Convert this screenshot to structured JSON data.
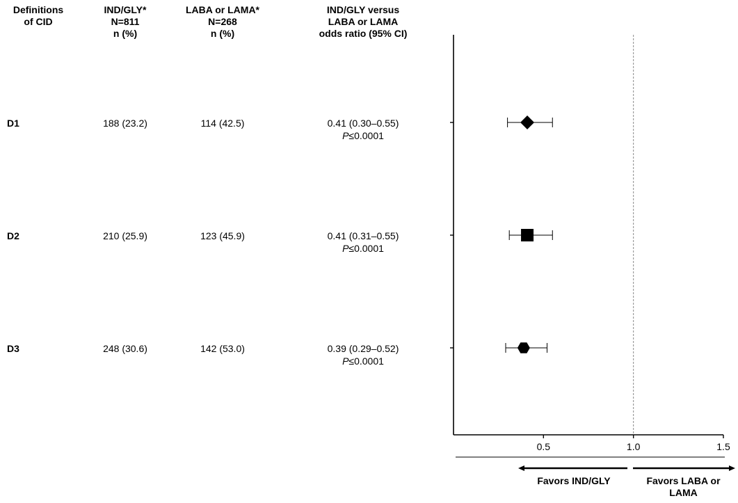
{
  "table": {
    "headers": {
      "definitions": [
        "Definitions",
        "of CID"
      ],
      "ind_gly": [
        "IND/GLY*",
        "N=811",
        "n (%)"
      ],
      "laba_lama": [
        "LABA or LAMA*",
        "N=268",
        "n (%)"
      ],
      "odds": [
        "IND/GLY versus",
        "LABA or LAMA",
        "odds ratio (95% CI)"
      ]
    },
    "rows": [
      {
        "label": "D1",
        "ind_gly": "188 (23.2)",
        "laba_lama": "114 (42.5)",
        "or_text": "0.41 (0.30–0.55)",
        "p_letter": "P",
        "p_value": "≤0.0001"
      },
      {
        "label": "D2",
        "ind_gly": "210 (25.9)",
        "laba_lama": "123 (45.9)",
        "or_text": "0.41 (0.31–0.55)",
        "p_letter": "P",
        "p_value": "≤0.0001"
      },
      {
        "label": "D3",
        "ind_gly": "248 (30.6)",
        "laba_lama": "142 (53.0)",
        "or_text": "0.39 (0.29–0.52)",
        "p_letter": "P",
        "p_value": "≤0.0001"
      }
    ]
  },
  "chart_data": {
    "type": "scatter",
    "title": "",
    "xlabel": "",
    "ylabel": "",
    "xlim": [
      0,
      1.5
    ],
    "x_ticks": [
      "0.5",
      "1.0",
      "1.5"
    ],
    "x_tick_values": [
      0.5,
      1.0,
      1.5
    ],
    "reference_line": 1.0,
    "points": [
      {
        "category": "D1",
        "estimate": 0.41,
        "ci_low": 0.3,
        "ci_high": 0.55,
        "marker": "diamond"
      },
      {
        "category": "D2",
        "estimate": 0.41,
        "ci_low": 0.31,
        "ci_high": 0.55,
        "marker": "square"
      },
      {
        "category": "D3",
        "estimate": 0.39,
        "ci_low": 0.29,
        "ci_high": 0.52,
        "marker": "hexagon"
      }
    ],
    "favors_left": "Favors IND/GLY",
    "favors_right": [
      "Favors LABA or",
      "LAMA"
    ],
    "grid": false
  }
}
